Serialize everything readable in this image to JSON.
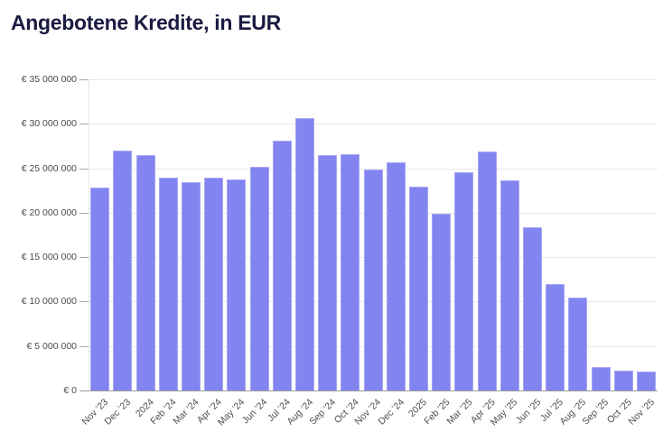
{
  "title": "Angebotene Kredite, in EUR",
  "colors": {
    "bar": "#8284f0",
    "bar_border": "#a5a6f4",
    "grid": "#e8e8e8",
    "axis_baseline": "#9e9e9e",
    "tick_dash": "#a8a8a8",
    "tick_text": "#4a4a4a",
    "title_text": "#1b1a41",
    "background": "#ffffff"
  },
  "chart_data": {
    "type": "bar",
    "title": "Angebotene Kredite, in EUR",
    "xlabel": "",
    "ylabel": "",
    "ylim": [
      0,
      35000000
    ],
    "grid": "horizontal",
    "legend": "none",
    "currency": "EUR",
    "categories": [
      "Nov ’23",
      "Dec ’23",
      "2024",
      "Feb ’24",
      "Mar ’24",
      "Apr ’24",
      "May ’24",
      "Jun ’24",
      "Jul ’24",
      "Aug ’24",
      "Sep ’24",
      "Oct ’24",
      "Nov ’24",
      "Dec ’24",
      "2025",
      "Feb ’25",
      "Mar ’25",
      "Apr ’25",
      "May ’25",
      "Jun ’25",
      "Jul ’25",
      "Aug ’25",
      "Sep ’25",
      "Oct ’25",
      "Nov ’25"
    ],
    "values": [
      22800000,
      27000000,
      26500000,
      23900000,
      23400000,
      23900000,
      23700000,
      25200000,
      28100000,
      30600000,
      26500000,
      26600000,
      24900000,
      25700000,
      22900000,
      19900000,
      24600000,
      26900000,
      23600000,
      18400000,
      12000000,
      10400000,
      2600000,
      2200000,
      2100000
    ],
    "y_tick_values": [
      35000000,
      30000000,
      25000000,
      20000000,
      15000000,
      10000000,
      5000000,
      0
    ],
    "y_tick_labels": [
      "€ 35 000 000",
      "€ 30 000 000",
      "€ 25 000 000",
      "€ 20 000 000",
      "€ 15 000 000",
      "€ 10 000 000",
      "€ 5 000 000",
      "€ 0"
    ]
  }
}
